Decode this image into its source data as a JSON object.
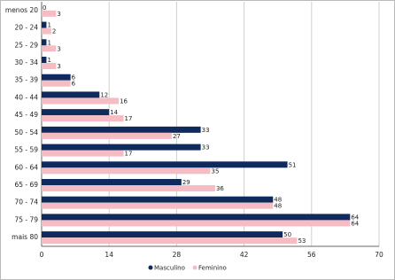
{
  "chart_data": {
    "type": "hbar",
    "categories": [
      "menos 20",
      "20 - 24",
      "25 - 29",
      "30 - 34",
      "35 - 39",
      "40 - 44",
      "45 - 49",
      "50 - 54",
      "55 - 59",
      "60 - 64",
      "65 - 69",
      "70 - 74",
      "75 - 79",
      "mais 80"
    ],
    "series": [
      {
        "name": "Masculino",
        "color": "#0f2a5c",
        "values": [
          0,
          1,
          1,
          1,
          6,
          12,
          14,
          33,
          33,
          51,
          29,
          48,
          64,
          50
        ]
      },
      {
        "name": "Feminino",
        "color": "#f5bcc4",
        "values": [
          3,
          2,
          3,
          3,
          6,
          16,
          17,
          27,
          17,
          35,
          36,
          48,
          64,
          53
        ]
      }
    ],
    "xlim": [
      0,
      70
    ],
    "xticks": [
      0,
      14,
      28,
      42,
      56,
      70
    ],
    "grid": true
  }
}
